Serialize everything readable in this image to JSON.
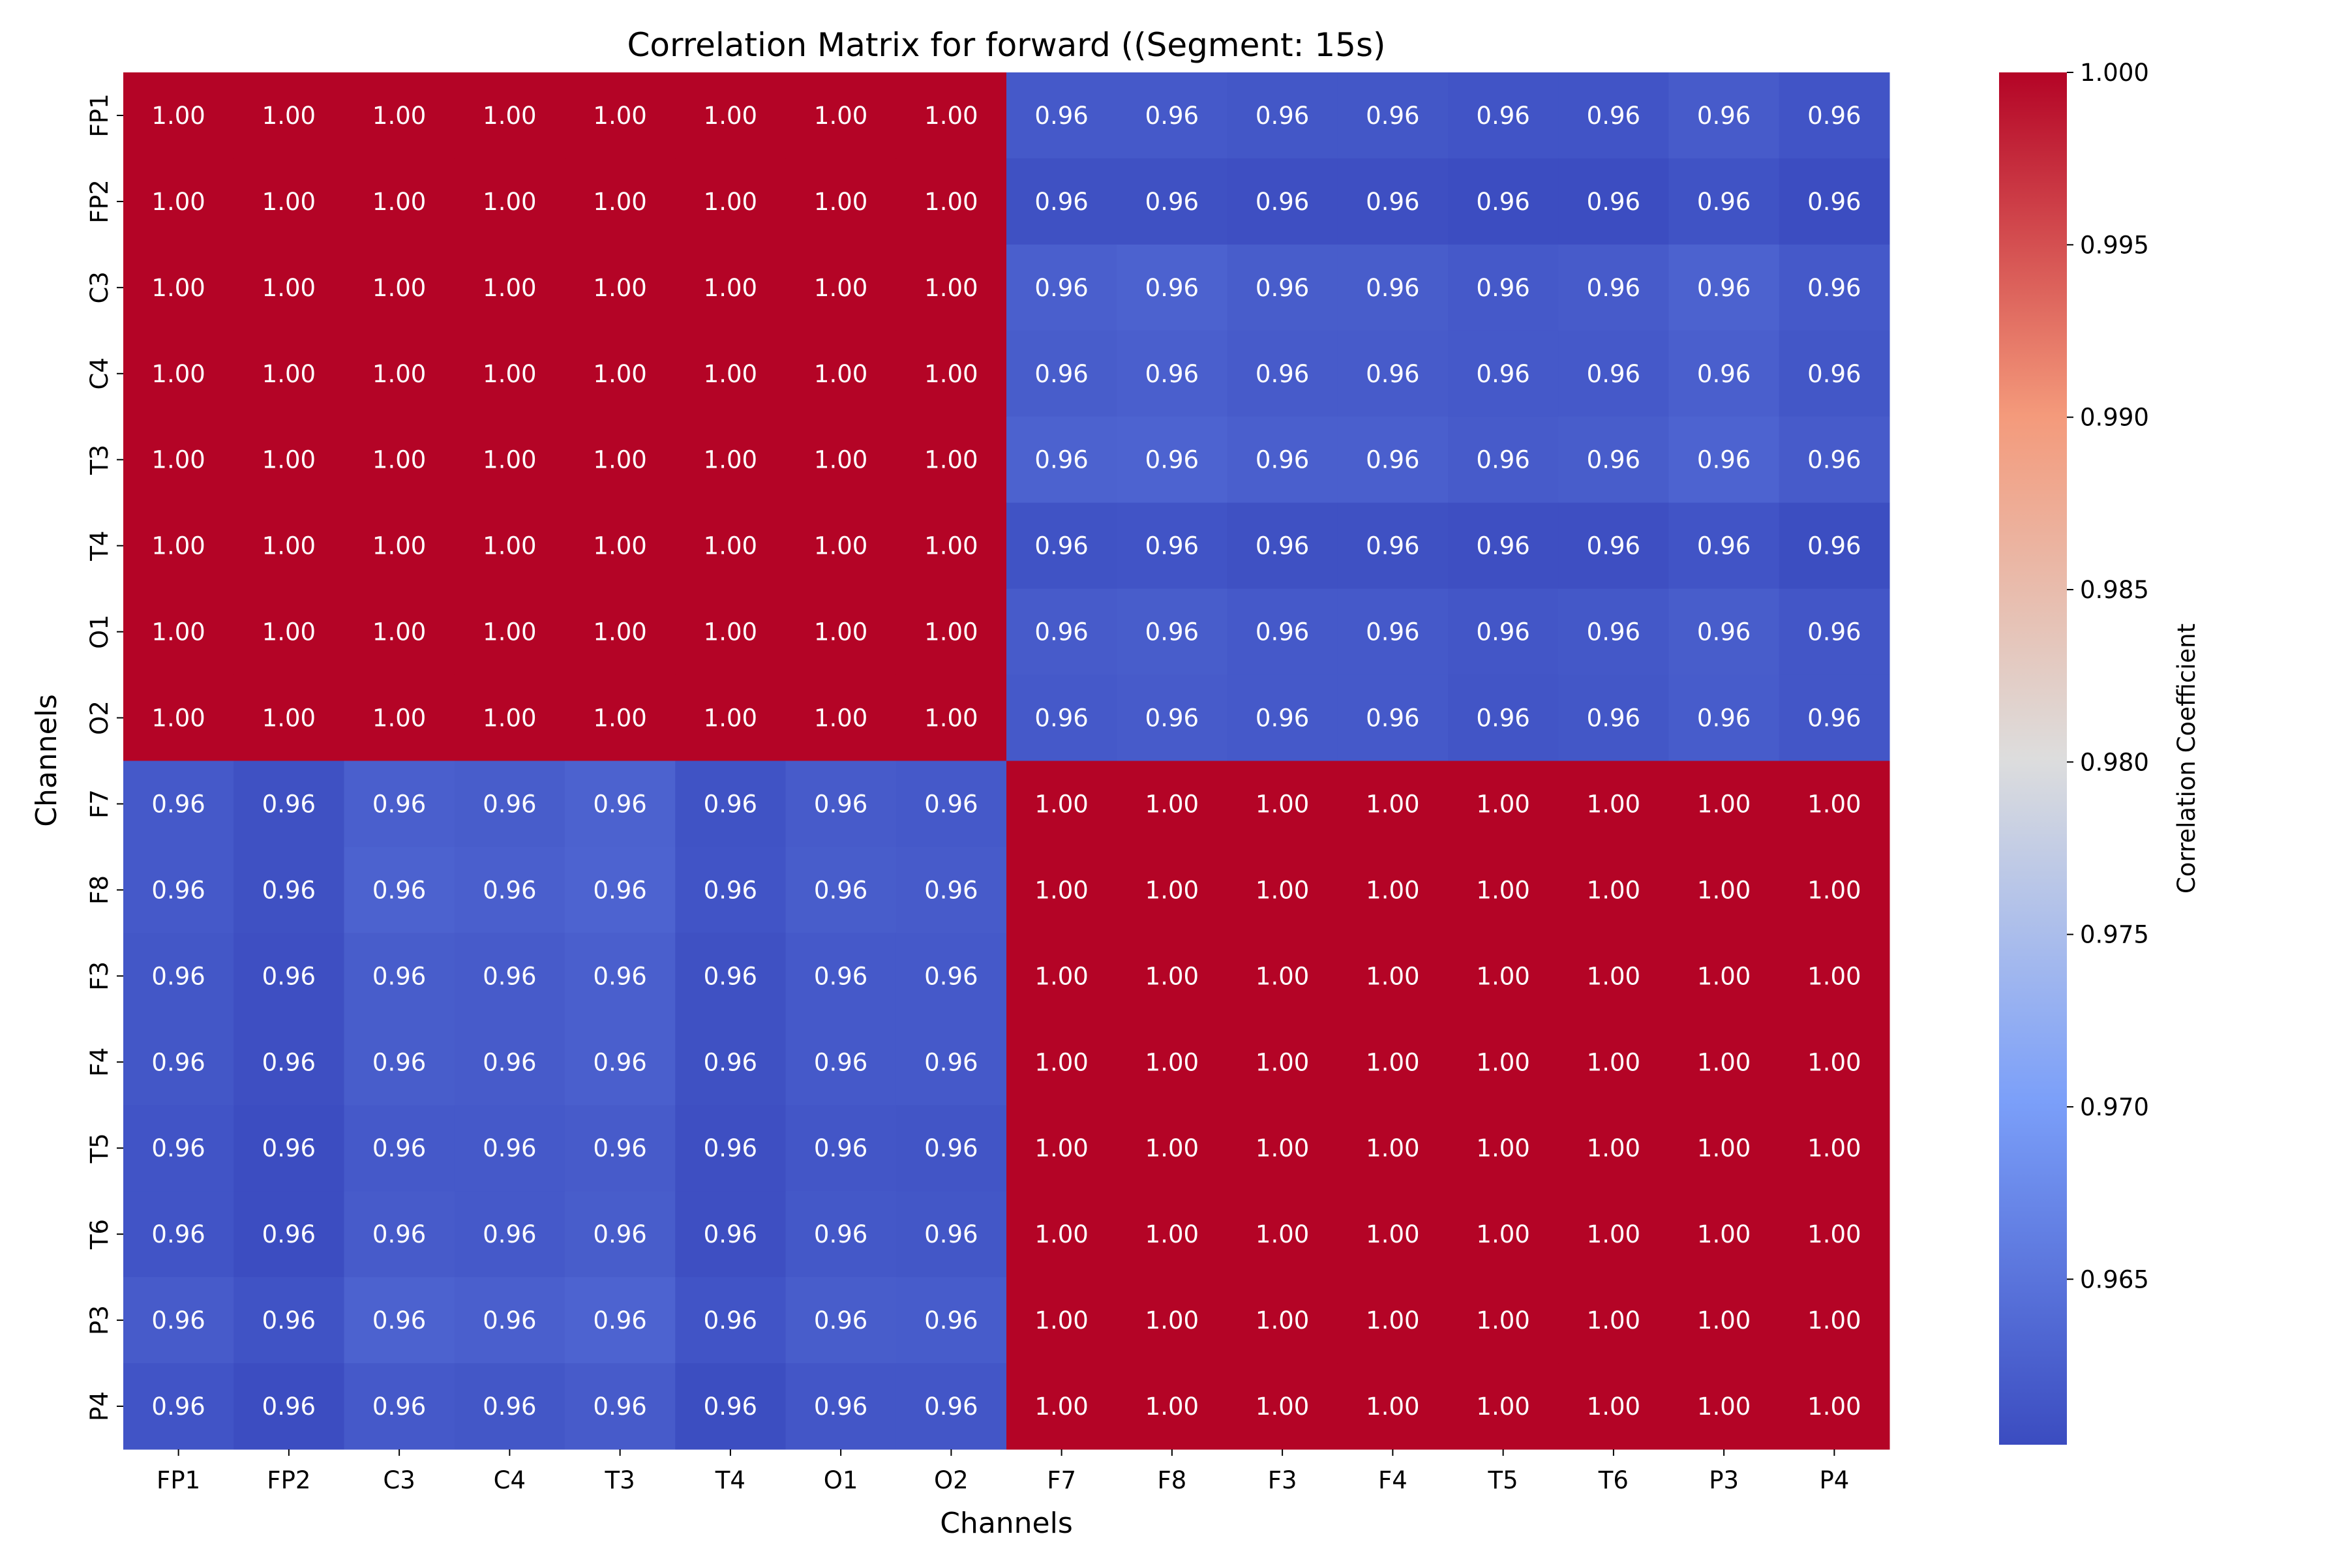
{
  "chart_data": {
    "type": "heatmap",
    "title": "Correlation Matrix for forward ((Segment: 15s)",
    "xlabel": "Channels",
    "ylabel": "Channels",
    "labels": [
      "FP1",
      "FP2",
      "C3",
      "C4",
      "T3",
      "T4",
      "O1",
      "O2",
      "F7",
      "F8",
      "F3",
      "F4",
      "T5",
      "T6",
      "P3",
      "P4"
    ],
    "annotation_format": "2 decimals",
    "colormap": "coolwarm",
    "colorbar": {
      "label": "Correlation Coefficient",
      "range": [
        0.9602,
        1.0
      ],
      "ticks": [
        "0.965",
        "0.970",
        "0.975",
        "0.980",
        "0.985",
        "0.990",
        "0.995",
        "1.000"
      ]
    },
    "within_group_value": 1.0,
    "cross_block": [
      [
        0.9617,
        0.9617,
        0.9615,
        0.9615,
        0.9612,
        0.9612,
        0.962,
        0.9612
      ],
      [
        0.9608,
        0.9608,
        0.9606,
        0.9606,
        0.9603,
        0.9603,
        0.961,
        0.9603
      ],
      [
        0.9625,
        0.9628,
        0.9622,
        0.9622,
        0.9618,
        0.962,
        0.9628,
        0.9618
      ],
      [
        0.9622,
        0.9625,
        0.962,
        0.962,
        0.9617,
        0.9617,
        0.9625,
        0.9615
      ],
      [
        0.9628,
        0.963,
        0.9625,
        0.9625,
        0.962,
        0.9622,
        0.963,
        0.962
      ],
      [
        0.961,
        0.9612,
        0.9608,
        0.9608,
        0.9606,
        0.9606,
        0.9612,
        0.9604
      ],
      [
        0.962,
        0.9622,
        0.9618,
        0.9618,
        0.9614,
        0.9616,
        0.9622,
        0.9614
      ],
      [
        0.9618,
        0.962,
        0.9617,
        0.9617,
        0.9613,
        0.9615,
        0.9621,
        0.9614
      ]
    ]
  }
}
